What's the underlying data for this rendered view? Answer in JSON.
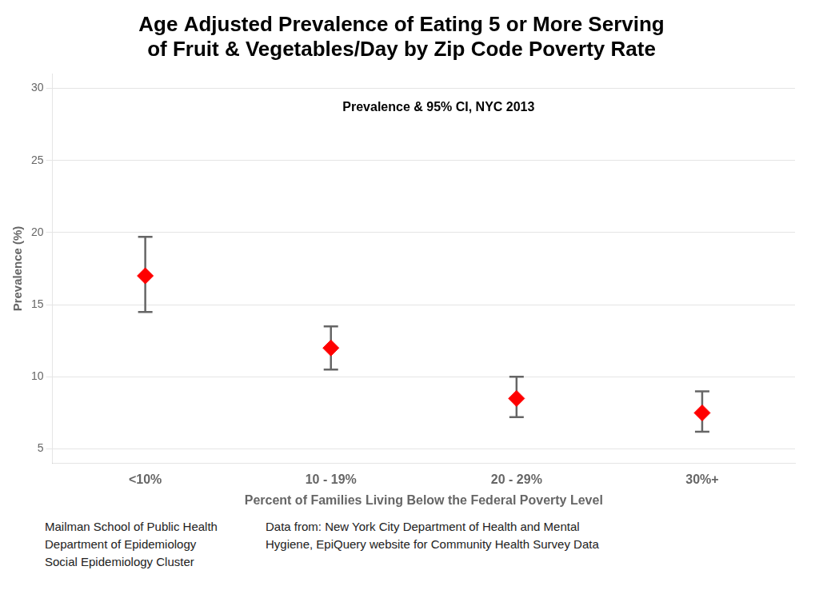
{
  "chart_data": {
    "type": "scatter",
    "title": [
      "Age Adjusted Prevalence of Eating 5 or More Serving",
      "of Fruit & Vegetables/Day by Zip Code Poverty Rate"
    ],
    "annotations": [
      "Prevalence & 95% CI, NYC 2013"
    ],
    "xlabel": "Percent of Families Living Below the Federal Poverty Level",
    "ylabel": "Prevalence (%)",
    "categories": [
      "<10%",
      "10 - 19%",
      "20 - 29%",
      "30%+"
    ],
    "values": [
      17.0,
      12.0,
      8.5,
      7.5
    ],
    "ci_lower": [
      14.5,
      10.5,
      7.2,
      6.2
    ],
    "ci_upper": [
      19.7,
      13.5,
      10.0,
      9.0
    ],
    "color": "#FF0000",
    "marker": "diamond",
    "ylim": [
      4,
      31
    ],
    "yticks": [
      5,
      10,
      15,
      20,
      25,
      30
    ],
    "grid": true,
    "footer_left": [
      "Mailman School of Public Health",
      "Department of Epidemiology",
      "Social Epidemiology Cluster"
    ],
    "footer_right": [
      "Data from: New York City Department of Health and Mental",
      "Hygiene, EpiQuery website for Community Health Survey Data"
    ]
  }
}
